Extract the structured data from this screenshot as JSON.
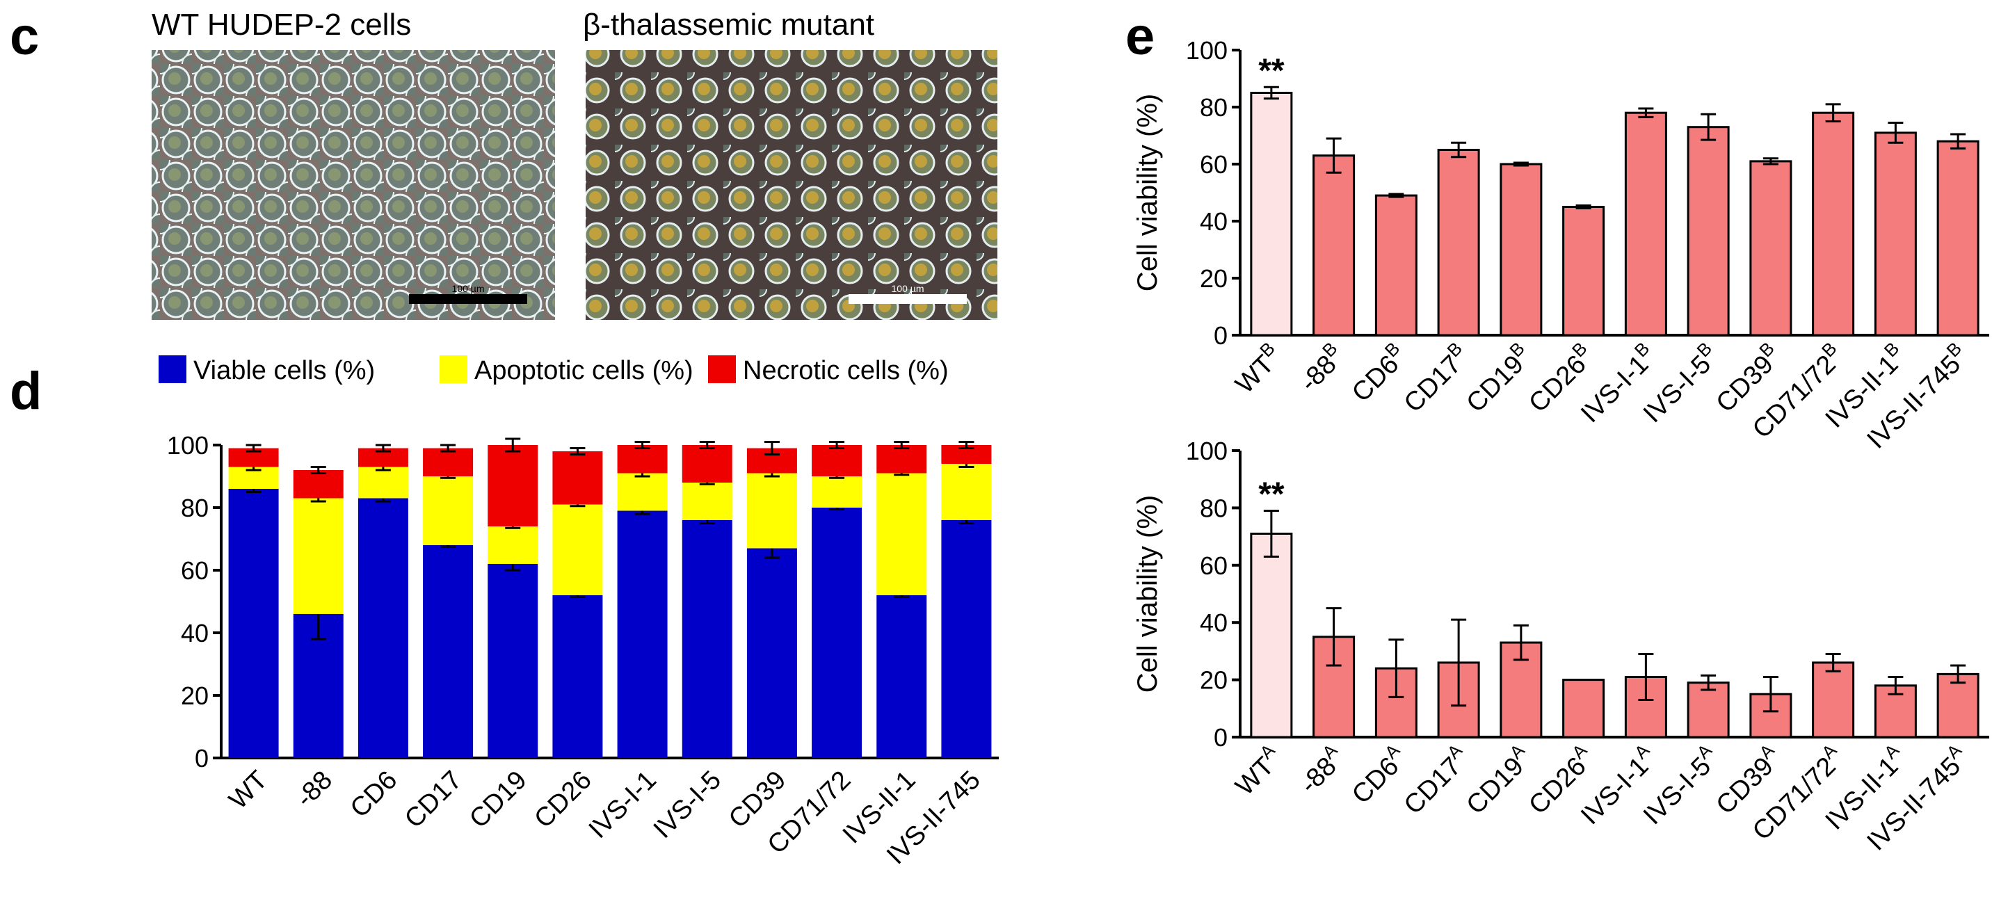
{
  "panels": {
    "c": "c",
    "d": "d",
    "e": "e"
  },
  "micrographs": [
    {
      "title": "WT HUDEP-2 cells",
      "scale_bar": "100 µm"
    },
    {
      "title": "β-thalassemic mutant",
      "scale_bar": "100 µm"
    }
  ],
  "colors": {
    "viable": "#0000c8",
    "apoptotic": "#ffff00",
    "necrotic": "#ee0000",
    "bar_fill": "#f47c7c",
    "wt_fill": "#fde3e3",
    "bg_cell": "#8a7d78",
    "bg_dark": "#2a2220"
  },
  "chart_data": [
    {
      "id": "d",
      "type": "bar",
      "stacked": true,
      "categories": [
        "WT",
        "-88",
        "CD6",
        "CD17",
        "CD19",
        "CD26",
        "IVS-I-1",
        "IVS-I-5",
        "CD39",
        "CD71/72",
        "IVS-II-1",
        "IVS-II-745"
      ],
      "series": [
        {
          "name": "Viable cells (%)",
          "values": [
            86,
            46,
            83,
            68,
            62,
            52,
            79,
            76,
            67,
            80,
            52,
            76
          ],
          "errors": [
            1,
            8,
            1,
            0.5,
            2,
            0.5,
            1,
            1,
            3,
            0.5,
            0.5,
            1
          ]
        },
        {
          "name": "Apoptotic cells (%)",
          "values": [
            7,
            37,
            10,
            22,
            12,
            29,
            12,
            12,
            24,
            10,
            39,
            18
          ],
          "errors": [
            1,
            1,
            1,
            0.5,
            0.5,
            0.5,
            1,
            0.5,
            1,
            0.5,
            0.5,
            1
          ]
        },
        {
          "name": "Necrotic cells (%)",
          "values": [
            6,
            9,
            6,
            9,
            26,
            17,
            9,
            12,
            8,
            10,
            9,
            6
          ],
          "errors": [
            1,
            1,
            1,
            1,
            2,
            1,
            1,
            1,
            2,
            1,
            1,
            1
          ]
        }
      ],
      "ylim": [
        0,
        100
      ],
      "yticks": [
        0,
        20,
        40,
        60,
        80,
        100
      ],
      "xlabel": "",
      "ylabel": "",
      "legend": "top"
    },
    {
      "id": "e-top",
      "type": "bar",
      "categories": [
        "WT",
        "-88",
        "CD6",
        "CD17",
        "CD19",
        "CD26",
        "IVS-I-1",
        "IVS-I-5",
        "CD39",
        "CD71/72",
        "IVS-II-1",
        "IVS-II-745"
      ],
      "category_superscript": "B",
      "values": [
        85,
        63,
        49,
        65,
        60,
        45,
        78,
        73,
        61,
        78,
        71,
        68
      ],
      "errors": [
        2,
        6,
        0.5,
        2.5,
        0.5,
        0.5,
        1.5,
        4.5,
        1,
        3,
        3.5,
        2.5
      ],
      "highlight": [
        0
      ],
      "annotation": "**",
      "ylabel": "Cell viability (%)",
      "ylim": [
        0,
        100
      ],
      "yticks": [
        0,
        20,
        40,
        60,
        80,
        100
      ]
    },
    {
      "id": "e-bottom",
      "type": "bar",
      "categories": [
        "WT",
        "-88",
        "CD6",
        "CD17",
        "CD19",
        "CD26",
        "IVS-I-1",
        "IVS-I-5",
        "CD39",
        "CD71/72",
        "IVS-II-1",
        "IVS-II-745"
      ],
      "category_superscript": "A",
      "values": [
        71,
        35,
        24,
        26,
        33,
        20,
        21,
        19,
        15,
        26,
        18,
        22
      ],
      "errors": [
        8,
        10,
        10,
        15,
        6,
        0,
        8,
        2.5,
        6,
        3,
        3,
        3
      ],
      "highlight": [
        0
      ],
      "annotation": "**",
      "ylabel": "Cell viability (%)",
      "ylim": [
        0,
        100
      ],
      "yticks": [
        0,
        20,
        40,
        60,
        80,
        100
      ]
    }
  ]
}
